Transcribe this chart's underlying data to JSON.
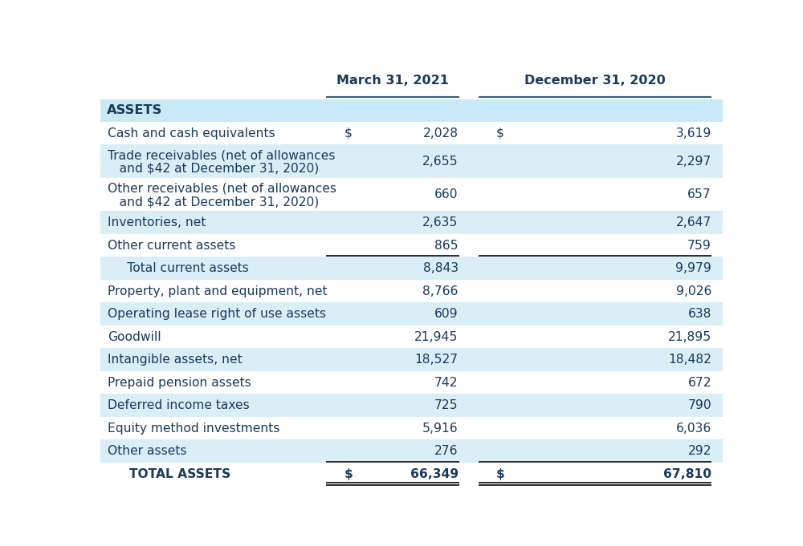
{
  "rows": [
    {
      "label": "ASSETS",
      "label2": null,
      "dollar1": "",
      "val1": "",
      "dollar2": "",
      "val2": "",
      "is_section_header": true,
      "bg": "#c9e9f6",
      "bold": true,
      "bottom_border": false,
      "is_total": false,
      "multiline": false
    },
    {
      "label": "Cash and cash equivalents",
      "label2": null,
      "dollar1": "$",
      "val1": "2,028",
      "dollar2": "$",
      "val2": "3,619",
      "is_section_header": false,
      "bg": "#ffffff",
      "bold": false,
      "bottom_border": false,
      "is_total": false,
      "multiline": false
    },
    {
      "label": "Trade receivables (net of allowances",
      "label2": "   and $42 at December 31, 2020)",
      "dollar1": "",
      "val1": "2,655",
      "dollar2": "",
      "val2": "2,297",
      "is_section_header": false,
      "bg": "#daeef8",
      "bold": false,
      "bottom_border": false,
      "is_total": false,
      "multiline": true
    },
    {
      "label": "Other receivables (net of allowances",
      "label2": "   and $42 at December 31, 2020)",
      "dollar1": "",
      "val1": "660",
      "dollar2": "",
      "val2": "657",
      "is_section_header": false,
      "bg": "#ffffff",
      "bold": false,
      "bottom_border": false,
      "is_total": false,
      "multiline": true
    },
    {
      "label": "Inventories, net",
      "label2": null,
      "dollar1": "",
      "val1": "2,635",
      "dollar2": "",
      "val2": "2,647",
      "is_section_header": false,
      "bg": "#daeef8",
      "bold": false,
      "bottom_border": false,
      "is_total": false,
      "multiline": false
    },
    {
      "label": "Other current assets",
      "label2": null,
      "dollar1": "",
      "val1": "865",
      "dollar2": "",
      "val2": "759",
      "is_section_header": false,
      "bg": "#ffffff",
      "bold": false,
      "bottom_border": true,
      "is_total": false,
      "multiline": false
    },
    {
      "label": "     Total current assets",
      "label2": null,
      "dollar1": "",
      "val1": "8,843",
      "dollar2": "",
      "val2": "9,979",
      "is_section_header": false,
      "bg": "#daeef8",
      "bold": false,
      "bottom_border": false,
      "is_total": false,
      "multiline": false
    },
    {
      "label": "Property, plant and equipment, net",
      "label2": null,
      "dollar1": "",
      "val1": "8,766",
      "dollar2": "",
      "val2": "9,026",
      "is_section_header": false,
      "bg": "#ffffff",
      "bold": false,
      "bottom_border": false,
      "is_total": false,
      "multiline": false
    },
    {
      "label": "Operating lease right of use assets",
      "label2": null,
      "dollar1": "",
      "val1": "609",
      "dollar2": "",
      "val2": "638",
      "is_section_header": false,
      "bg": "#daeef8",
      "bold": false,
      "bottom_border": false,
      "is_total": false,
      "multiline": false
    },
    {
      "label": "Goodwill",
      "label2": null,
      "dollar1": "",
      "val1": "21,945",
      "dollar2": "",
      "val2": "21,895",
      "is_section_header": false,
      "bg": "#ffffff",
      "bold": false,
      "bottom_border": false,
      "is_total": false,
      "multiline": false
    },
    {
      "label": "Intangible assets, net",
      "label2": null,
      "dollar1": "",
      "val1": "18,527",
      "dollar2": "",
      "val2": "18,482",
      "is_section_header": false,
      "bg": "#daeef8",
      "bold": false,
      "bottom_border": false,
      "is_total": false,
      "multiline": false
    },
    {
      "label": "Prepaid pension assets",
      "label2": null,
      "dollar1": "",
      "val1": "742",
      "dollar2": "",
      "val2": "672",
      "is_section_header": false,
      "bg": "#ffffff",
      "bold": false,
      "bottom_border": false,
      "is_total": false,
      "multiline": false
    },
    {
      "label": "Deferred income taxes",
      "label2": null,
      "dollar1": "",
      "val1": "725",
      "dollar2": "",
      "val2": "790",
      "is_section_header": false,
      "bg": "#daeef8",
      "bold": false,
      "bottom_border": false,
      "is_total": false,
      "multiline": false
    },
    {
      "label": "Equity method investments",
      "label2": null,
      "dollar1": "",
      "val1": "5,916",
      "dollar2": "",
      "val2": "6,036",
      "is_section_header": false,
      "bg": "#ffffff",
      "bold": false,
      "bottom_border": false,
      "is_total": false,
      "multiline": false
    },
    {
      "label": "Other assets",
      "label2": null,
      "dollar1": "",
      "val1": "276",
      "dollar2": "",
      "val2": "292",
      "is_section_header": false,
      "bg": "#daeef8",
      "bold": false,
      "bottom_border": true,
      "is_total": false,
      "multiline": false
    },
    {
      "label": "     TOTAL ASSETS",
      "label2": null,
      "dollar1": "$",
      "val1": "66,349",
      "dollar2": "$",
      "val2": "67,810",
      "is_section_header": false,
      "bg": "#ffffff",
      "bold": true,
      "bottom_border": true,
      "is_total": true,
      "multiline": false
    }
  ],
  "col_header1": "March 31, 2021",
  "col_header2": "December 31, 2020",
  "text_color": "#1a3a5c",
  "header_line_color": "#2e5f8a",
  "border_color": "#1a1a1a",
  "font_size": 11.2,
  "header_font_size": 11.5,
  "fig_width": 10.0,
  "fig_height": 6.81,
  "dpi": 100
}
